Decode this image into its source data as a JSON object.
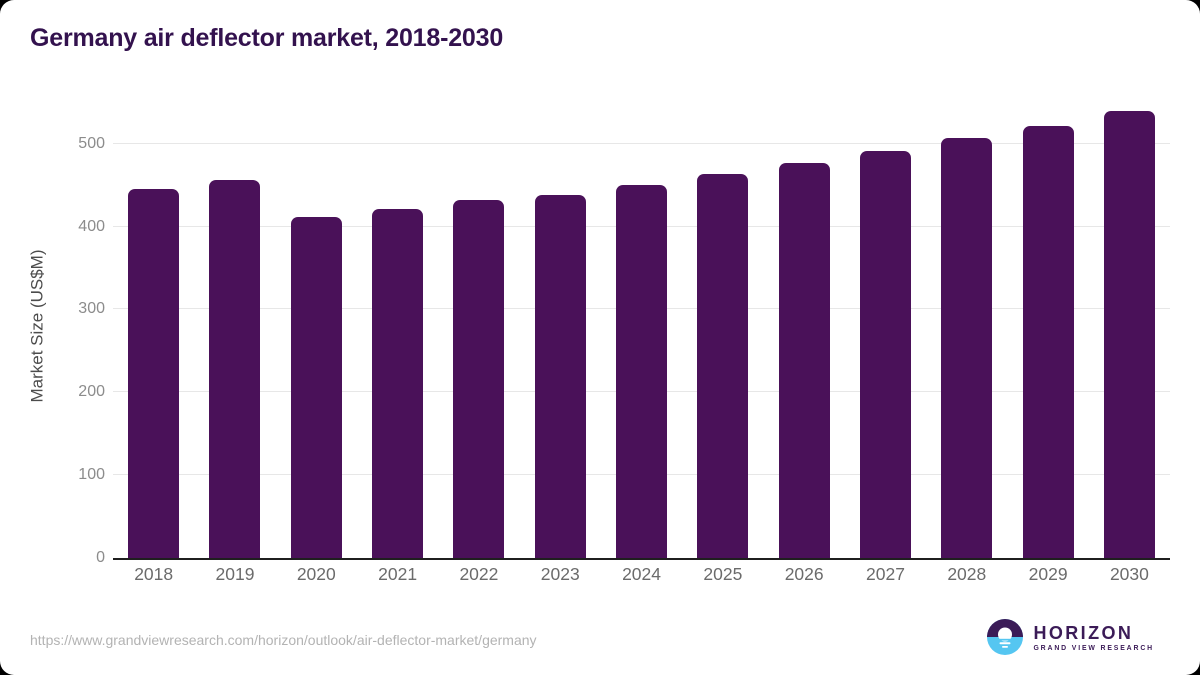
{
  "header": {
    "title": "Germany air deflector market, 2018-2030"
  },
  "footer": {
    "source_url": "https://www.grandviewresearch.com/horizon/outlook/air-deflector-market/germany",
    "logo": {
      "brand": "HORIZON",
      "tagline": "GRAND VIEW RESEARCH"
    }
  },
  "chart_data": {
    "type": "bar",
    "title": "Germany air deflector market, 2018-2030",
    "categories": [
      "2018",
      "2019",
      "2020",
      "2021",
      "2022",
      "2023",
      "2024",
      "2025",
      "2026",
      "2027",
      "2028",
      "2029",
      "2030"
    ],
    "values": [
      445,
      456,
      411,
      421,
      432,
      438,
      450,
      463,
      477,
      491,
      507,
      522,
      540
    ],
    "xlabel": "",
    "ylabel": "Market Size (US$M)",
    "ylim": [
      0,
      560
    ],
    "yticks": [
      0,
      100,
      200,
      300,
      400,
      500
    ],
    "grid": true,
    "legend": false,
    "bar_color": "#4a1159"
  },
  "colors": {
    "title": "#33124e",
    "bar": "#4a1159",
    "axis_line": "#1f1f1f",
    "gridline": "#e7e7e7",
    "y_tick_label": "#8c8c8c",
    "x_tick_label": "#6b6b6b",
    "url_text": "#b3b3b3",
    "logo_purple": "#3b1b57",
    "logo_blue": "#55c6f1",
    "card_background": "#ffffff",
    "page_background": "#000000"
  }
}
